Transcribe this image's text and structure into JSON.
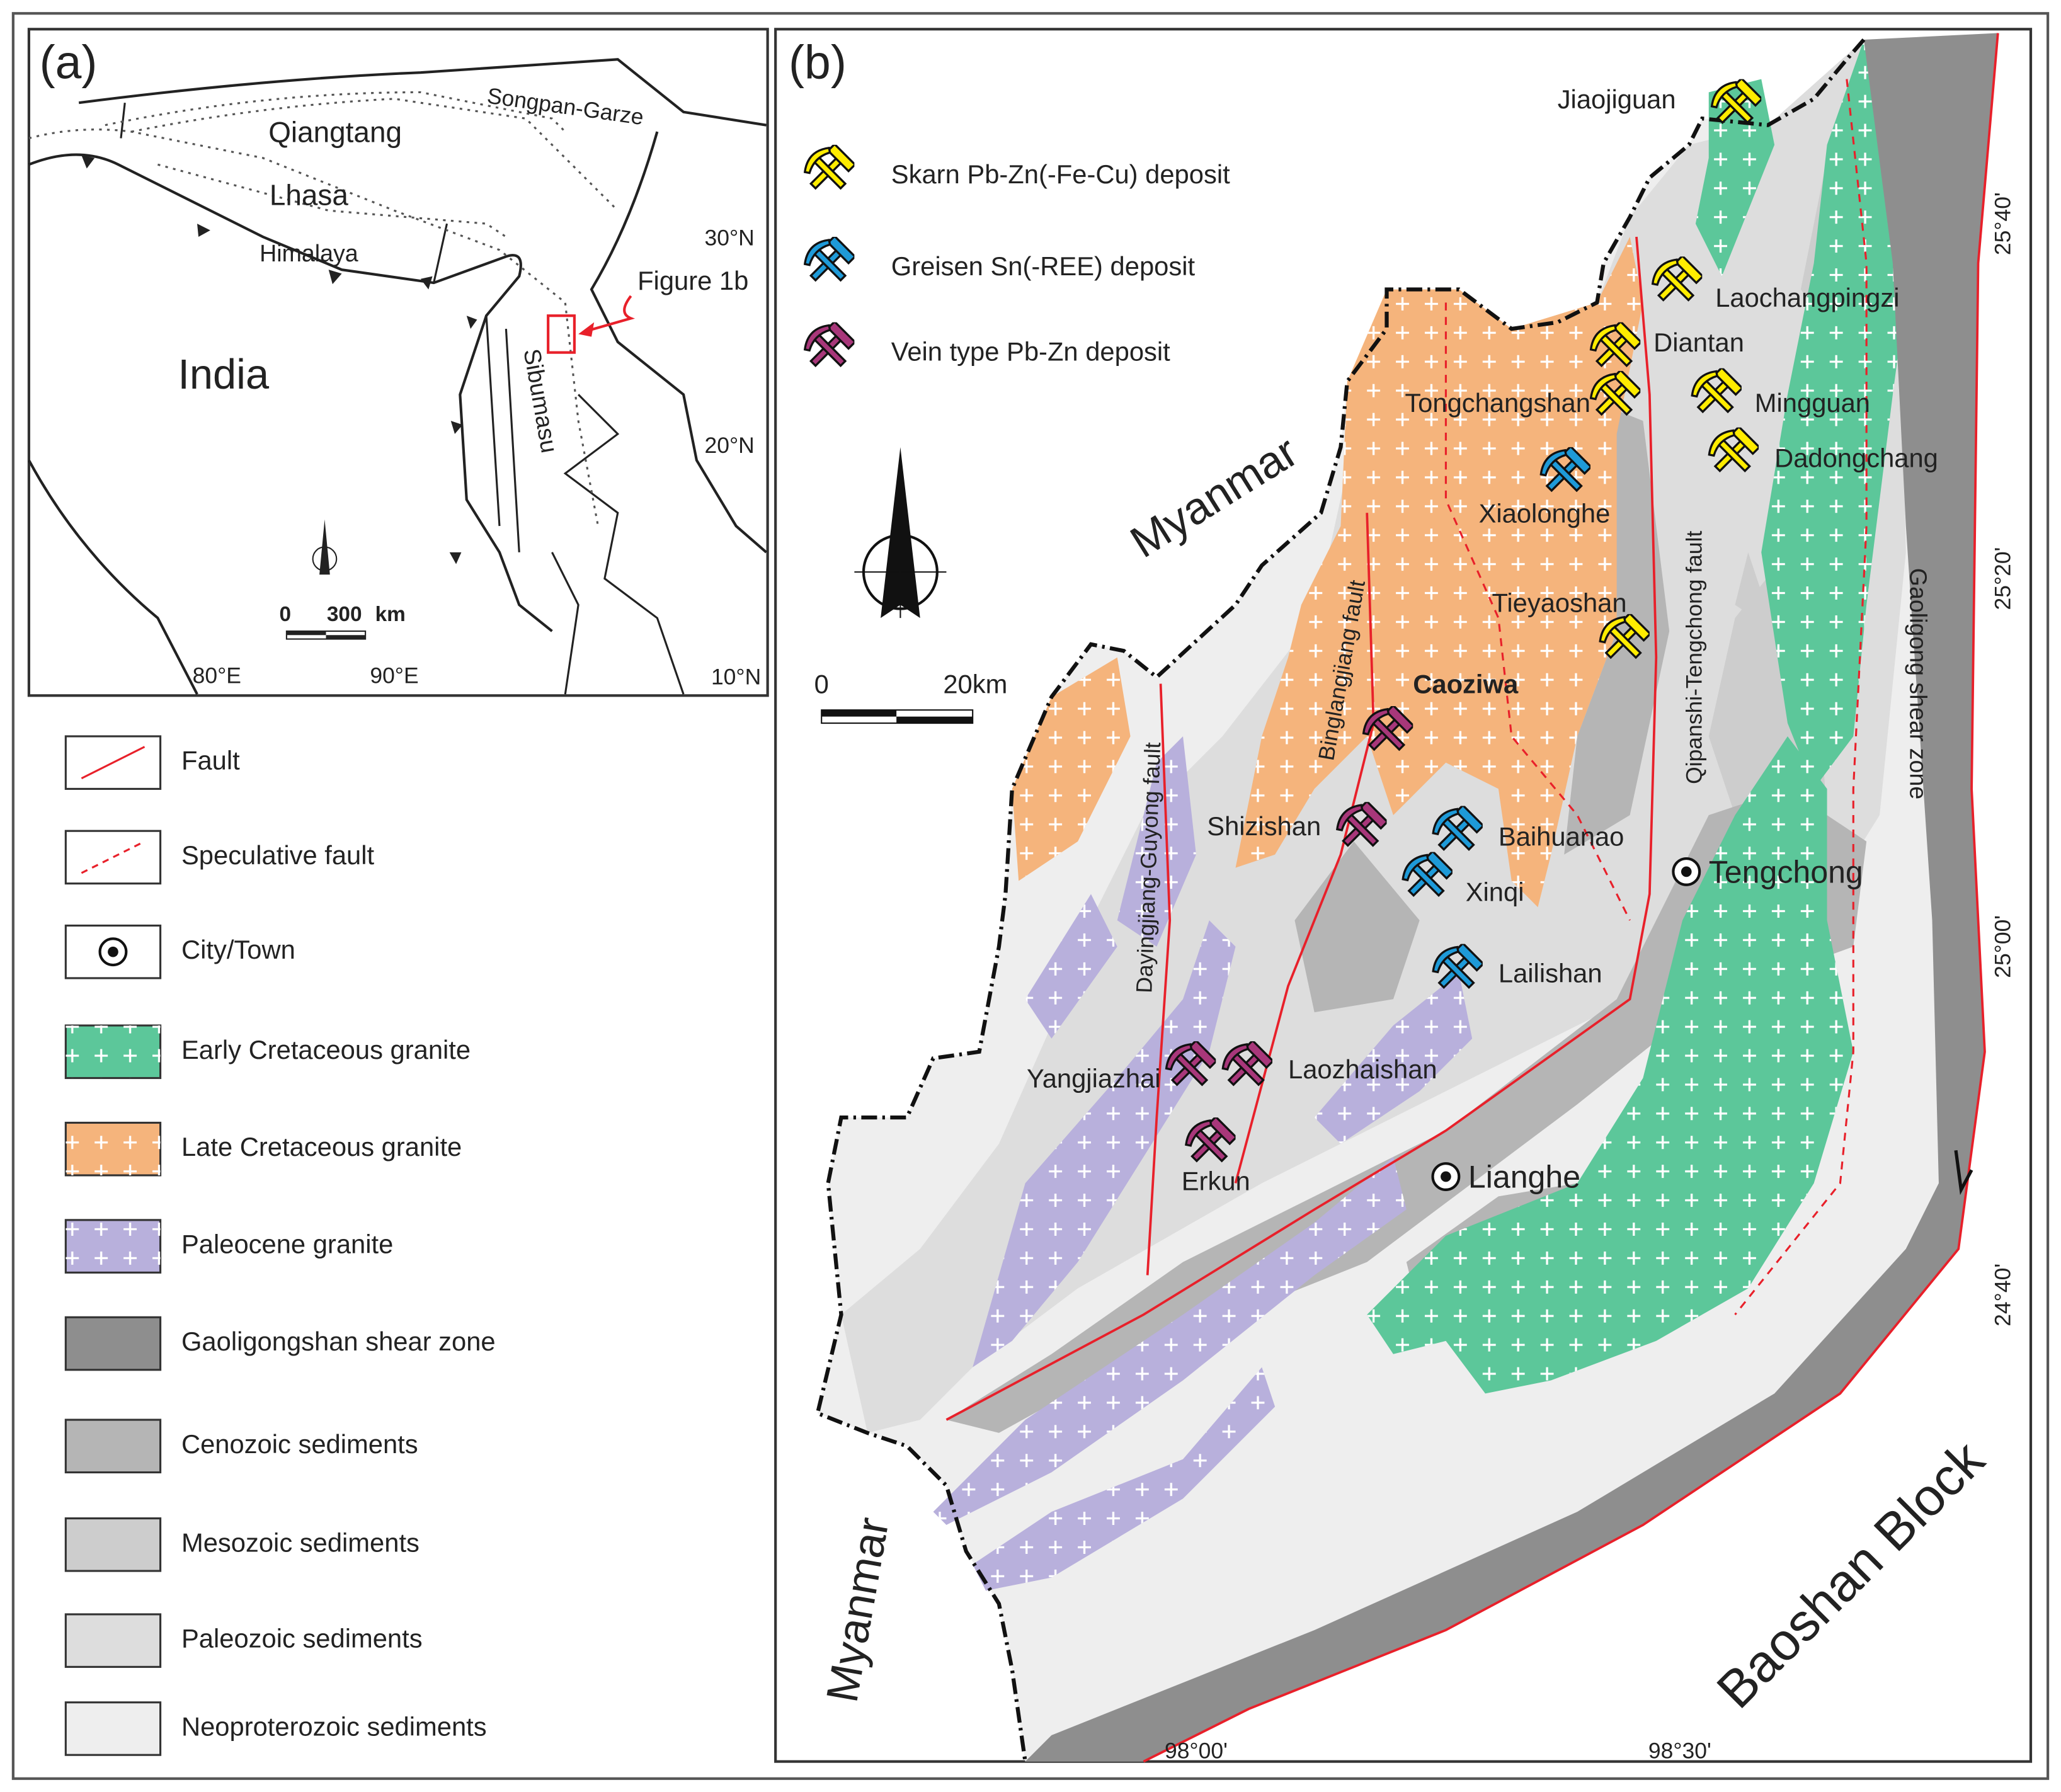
{
  "panel_a": {
    "label": "(a)",
    "regions": [
      "Qiangtang",
      "Songpan-Garze",
      "Lhasa",
      "Himalaya",
      "India",
      "Sibumasu"
    ],
    "callout": "Figure 1b",
    "lat_labels": [
      "30°N",
      "20°N",
      "10°N"
    ],
    "lon_labels": [
      "80°E",
      "90°E"
    ],
    "scale": [
      "0",
      "300",
      "km"
    ]
  },
  "panel_b": {
    "label": "(b)",
    "deposit_types": [
      {
        "label": "Skarn Pb-Zn(-Fe-Cu) deposit",
        "color": "#ffec00"
      },
      {
        "label": "Greisen Sn(-REE) deposit",
        "color": "#1e9ad8"
      },
      {
        "label": "Vein type Pb-Zn deposit",
        "color": "#a8377a"
      }
    ],
    "deposits": [
      {
        "name": "Jiaojiguan",
        "type": 0
      },
      {
        "name": "Laochangpingzi",
        "type": 0
      },
      {
        "name": "Diantan",
        "type": 0
      },
      {
        "name": "Tongchangshan",
        "type": 0
      },
      {
        "name": "Mingguan",
        "type": 0
      },
      {
        "name": "Dadongchang",
        "type": 0
      },
      {
        "name": "Xiaolonghe",
        "type": 1
      },
      {
        "name": "Tieyaoshan",
        "type": 0
      },
      {
        "name": "Caoziwa",
        "type": 2
      },
      {
        "name": "Shizishan",
        "type": 2
      },
      {
        "name": "Baihuanao",
        "type": 1
      },
      {
        "name": "Xinqi",
        "type": 1
      },
      {
        "name": "Lailishan",
        "type": 1
      },
      {
        "name": "Yangjiazhai",
        "type": 2
      },
      {
        "name": "Laozhaishan",
        "type": 2
      },
      {
        "name": "Erkun",
        "type": 2
      }
    ],
    "towns": [
      "Tengchong",
      "Lianghe"
    ],
    "faults": [
      "Dayingjiang-Guyong fault",
      "Binglangjiang fault",
      "Qipanshi-Tengchong fault"
    ],
    "shear_zone": "Gaoligong shear zone",
    "regions": [
      "Myanmar",
      "Myanmar",
      "Baoshan Block"
    ],
    "lat_labels": [
      "25°40'",
      "25°20'",
      "25°00'",
      "24°40'"
    ],
    "lon_labels": [
      "98°00'",
      "98°30'"
    ],
    "scale": [
      "0",
      "20km"
    ]
  },
  "legend": [
    {
      "label": "Fault"
    },
    {
      "label": "Speculative fault"
    },
    {
      "label": "City/Town"
    },
    {
      "label": "Early Cretaceous granite",
      "color": "#5cc79a"
    },
    {
      "label": "Late Cretaceous granite",
      "color": "#f5b47c"
    },
    {
      "label": "Paleocene granite",
      "color": "#b8b0dc"
    },
    {
      "label": "Gaoligongshan shear zone",
      "color": "#8e8e8e"
    },
    {
      "label": "Cenozoic sediments",
      "color": "#b5b5b5"
    },
    {
      "label": "Mesozoic sediments",
      "color": "#cdcdcd"
    },
    {
      "label": "Paleozoic sediments",
      "color": "#dddddd"
    },
    {
      "label": "Neoproterozoic sediments",
      "color": "#eeeeee"
    }
  ]
}
